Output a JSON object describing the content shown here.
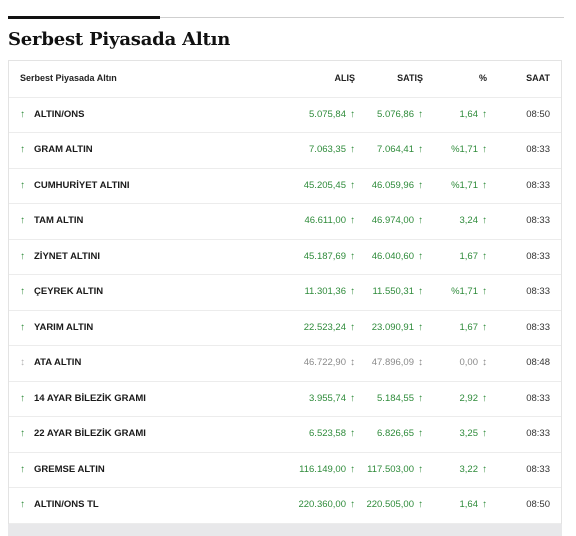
{
  "title": "Serbest Piyasada Altın",
  "table": {
    "headers": {
      "name": "Serbest Piyasada Altın",
      "bid": "ALIŞ",
      "ask": "SATIŞ",
      "pct": "%",
      "time": "SAAT"
    },
    "rows": [
      {
        "name": "ALTIN/ONS",
        "bid": "5.075,84",
        "ask": "5.076,86",
        "pct": "1,64",
        "time": "08:50",
        "trend": "up",
        "arrow": "↑"
      },
      {
        "name": "GRAM ALTIN",
        "bid": "7.063,35",
        "ask": "7.064,41",
        "pct": "%1,71",
        "time": "08:33",
        "trend": "up",
        "arrow": "↑"
      },
      {
        "name": "CUMHURİYET ALTINI",
        "bid": "45.205,45",
        "ask": "46.059,96",
        "pct": "%1,71",
        "time": "08:33",
        "trend": "up",
        "arrow": "↑"
      },
      {
        "name": "TAM ALTIN",
        "bid": "46.611,00",
        "ask": "46.974,00",
        "pct": "3,24",
        "time": "08:33",
        "trend": "up",
        "arrow": "↑"
      },
      {
        "name": "ZİYNET ALTINI",
        "bid": "45.187,69",
        "ask": "46.040,60",
        "pct": "1,67",
        "time": "08:33",
        "trend": "up",
        "arrow": "↑"
      },
      {
        "name": "ÇEYREK ALTIN",
        "bid": "11.301,36",
        "ask": "11.550,31",
        "pct": "%1,71",
        "time": "08:33",
        "trend": "up",
        "arrow": "↑"
      },
      {
        "name": "YARIM ALTIN",
        "bid": "22.523,24",
        "ask": "23.090,91",
        "pct": "1,67",
        "time": "08:33",
        "trend": "up",
        "arrow": "↑"
      },
      {
        "name": "ATA ALTIN",
        "bid": "46.722,90",
        "ask": "47.896,09",
        "pct": "0,00",
        "time": "08:48",
        "trend": "flat",
        "arrow": "↕"
      },
      {
        "name": "14 AYAR BİLEZİK GRAMI",
        "bid": "3.955,74",
        "ask": "5.184,55",
        "pct": "2,92",
        "time": "08:33",
        "trend": "up",
        "arrow": "↑"
      },
      {
        "name": "22 AYAR BİLEZİK GRAMI",
        "bid": "6.523,58",
        "ask": "6.826,65",
        "pct": "3,25",
        "time": "08:33",
        "trend": "up",
        "arrow": "↑"
      },
      {
        "name": "GREMSE ALTIN",
        "bid": "116.149,00",
        "ask": "117.503,00",
        "pct": "3,22",
        "time": "08:33",
        "trend": "up",
        "arrow": "↑"
      },
      {
        "name": "ALTIN/ONS TL",
        "bid": "220.360,00",
        "ask": "220.505,00",
        "pct": "1,64",
        "time": "08:50",
        "trend": "up",
        "arrow": "↑"
      }
    ]
  },
  "colors": {
    "up": "#2e8b3a",
    "flat": "#8a8a8a"
  },
  "icons": {
    "up": "arrow-up-icon",
    "flat": "arrow-updown-icon"
  }
}
